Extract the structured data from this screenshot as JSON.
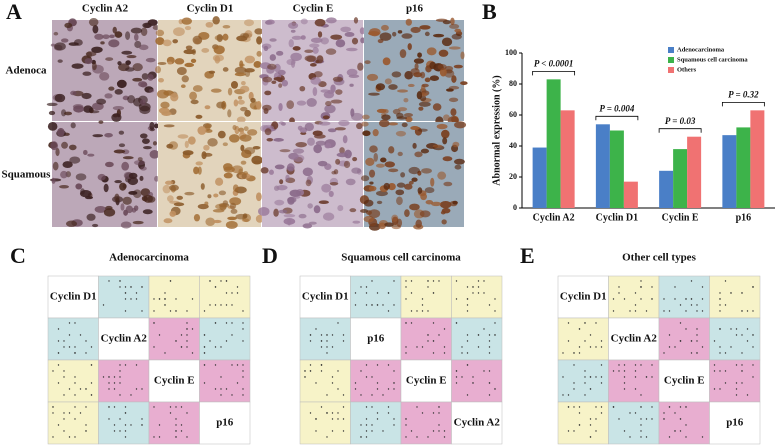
{
  "panel_a": {
    "letter": "A",
    "columns": [
      "Cyclin A2",
      "Cyclin D1",
      "Cyclin E",
      "p16"
    ],
    "rows": [
      "Adenoca",
      "Squamous"
    ]
  },
  "panel_b": {
    "letter": "B"
  },
  "chart_data": {
    "type": "bar",
    "y_label": "Abnormal expression (%)",
    "categories": [
      "Cyclin A2",
      "Cyclin D1",
      "Cyclin E",
      "p16"
    ],
    "series": [
      {
        "name": "Adenocarcinoma",
        "color": "#4a7fc7",
        "values": [
          39,
          54,
          24,
          47
        ]
      },
      {
        "name": "Squamous cell carcinoma",
        "color": "#3db34a",
        "values": [
          83,
          50,
          38,
          52
        ]
      },
      {
        "name": "Others",
        "color": "#f07272",
        "values": [
          63,
          17,
          46,
          63
        ]
      }
    ],
    "annotations": [
      "P < 0.0001",
      "P = 0.004",
      "P = 0.03",
      "P = 0.32"
    ],
    "ylim": [
      0,
      100
    ],
    "yticks": [
      0,
      20,
      40,
      60,
      80,
      100
    ],
    "grid": false,
    "legend": "upper right"
  },
  "matrices": [
    {
      "letter": "C",
      "title": "Adenocarcinoma",
      "labels": [
        "Cyclin D1",
        "Cyclin A2",
        "Cyclin E",
        "p16"
      ]
    },
    {
      "letter": "D",
      "title": "Squamous cell carcinoma",
      "labels": [
        "Cyclin D1",
        "p16",
        "Cyclin E",
        "Cyclin A2"
      ]
    },
    {
      "letter": "E",
      "title": "Other cell types",
      "labels": [
        "Cyclin D1",
        "Cyclin A2",
        "Cyclin E",
        "p16"
      ]
    }
  ]
}
